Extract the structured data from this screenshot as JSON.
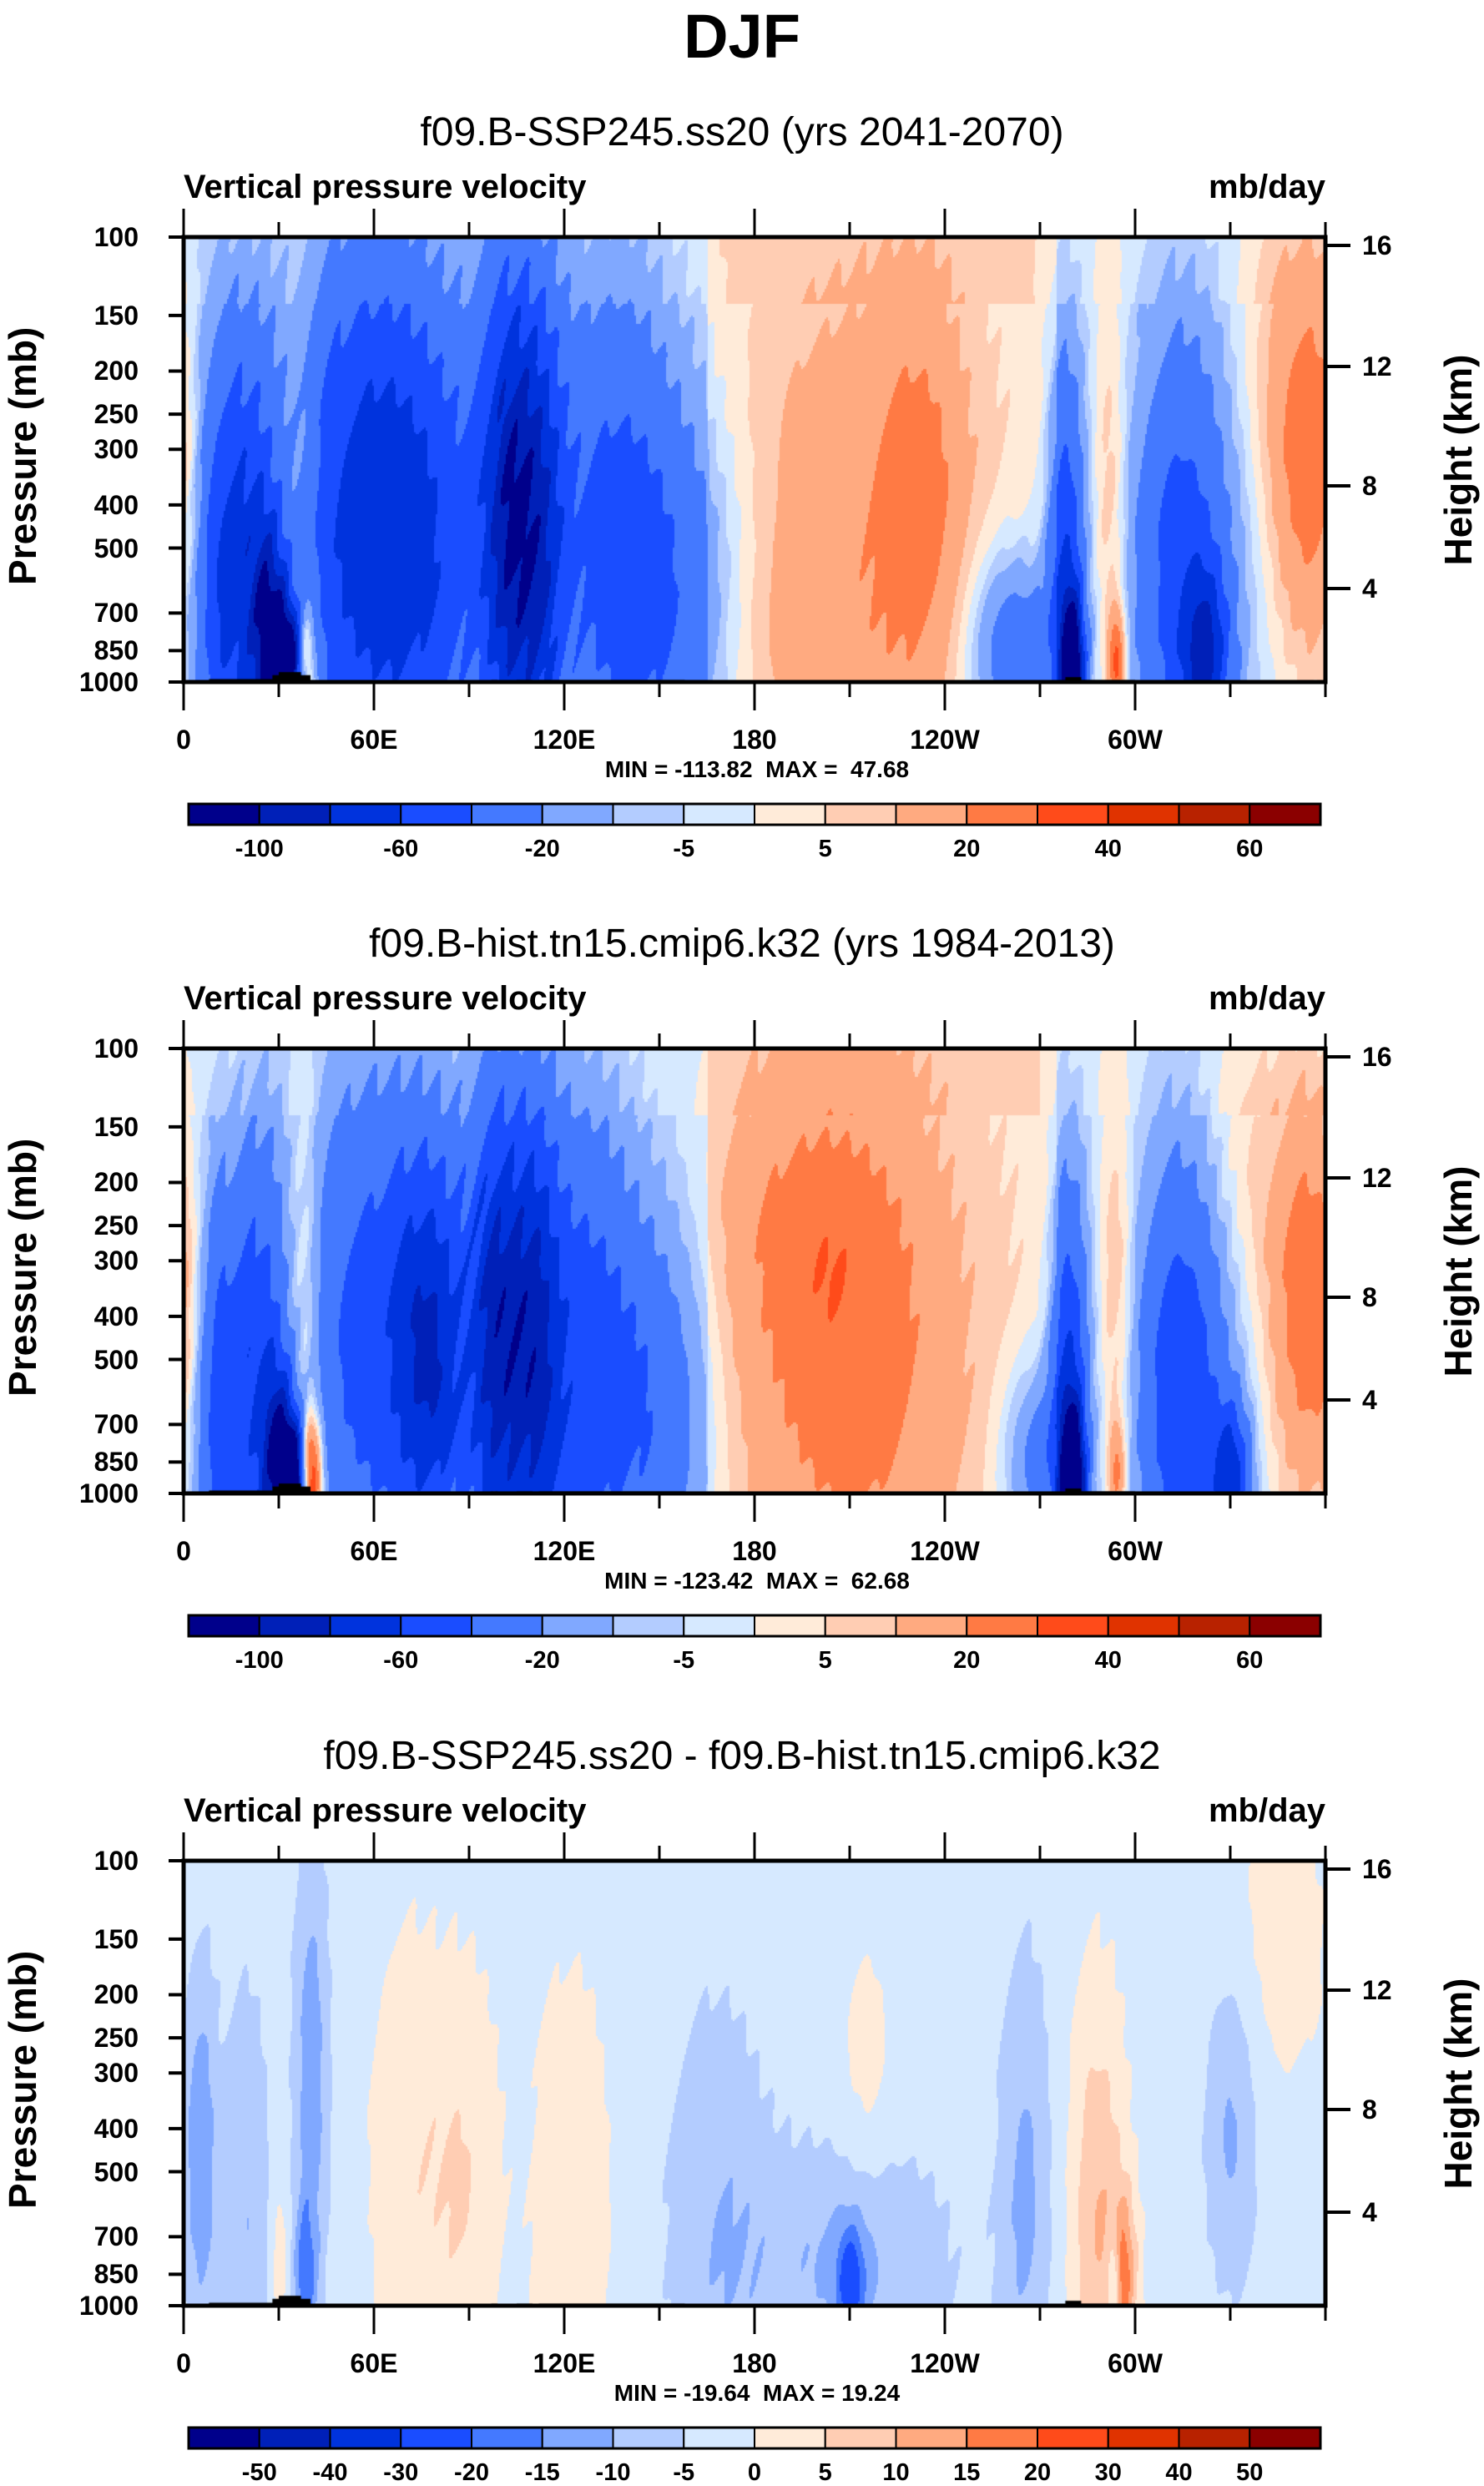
{
  "figure": {
    "title": "DJF"
  },
  "chart_data": [
    {
      "type": "heatmap",
      "subtype": "filled-contour pressure-longitude cross section",
      "title": "f09.B-SSP245.ss20 (yrs 2041-2070)",
      "left_string": "Vertical pressure velocity",
      "right_string": "mb/day",
      "xlabel": "",
      "ylabel": "Pressure (mb)",
      "ylabel_right": "Height (km)",
      "x_ticks": [
        "0",
        "60E",
        "120E",
        "180",
        "120W",
        "60W"
      ],
      "x_tick_values": [
        0,
        60,
        120,
        180,
        240,
        300
      ],
      "xlim": [
        0,
        360
      ],
      "y_ticks": [
        "100",
        "150",
        "200",
        "250",
        "300",
        "400",
        "500",
        "700",
        "850",
        "1000"
      ],
      "ylim": [
        1000,
        100
      ],
      "y_scale": "log",
      "y_right_ticks": [
        "16",
        "12",
        "8",
        "4"
      ],
      "min_max": "MIN = -113.82  MAX =  47.68",
      "min": -113.82,
      "max": 47.68,
      "colorbar": {
        "levels": [
          -100,
          -80,
          -60,
          -40,
          -20,
          -10,
          -5,
          0,
          5,
          10,
          20,
          30,
          40,
          50,
          60
        ],
        "labels": [
          "-100",
          "-60",
          "-20",
          "-5",
          "5",
          "20",
          "40",
          "60"
        ],
        "label_every": 2,
        "colors": [
          "#00008b",
          "#0020b8",
          "#0033dd",
          "#1a4dff",
          "#4479ff",
          "#80a8ff",
          "#b3ccff",
          "#d6e9ff",
          "#ffebd9",
          "#ffcdb3",
          "#ffaa80",
          "#ff7a44",
          "#ff4b1a",
          "#e03300",
          "#b82200",
          "#8b0000"
        ]
      },
      "features": [
        {
          "lon": 0,
          "p": 330,
          "value": 15,
          "wlon": 5,
          "wp": 0.55
        },
        {
          "lon": 12,
          "p": 600,
          "value": -55,
          "wlon": 6,
          "wp": 0.9
        },
        {
          "lon": 22,
          "p": 500,
          "value": -35,
          "wlon": 5,
          "wp": 0.8
        },
        {
          "lon": 27,
          "p": 800,
          "value": -80,
          "wlon": 4,
          "wp": 0.4
        },
        {
          "lon": 33,
          "p": 920,
          "value": -110,
          "wlon": 3,
          "wp": 0.22
        },
        {
          "lon": 37,
          "p": 380,
          "value": 14,
          "wlon": 4,
          "wp": 0.9
        },
        {
          "lon": 38,
          "p": 920,
          "value": 45,
          "wlon": 2.5,
          "wp": 0.22
        },
        {
          "lon": 55,
          "p": 420,
          "value": -48,
          "wlon": 18,
          "wp": 1.0
        },
        {
          "lon": 75,
          "p": 500,
          "value": -40,
          "wlon": 18,
          "wp": 0.95
        },
        {
          "lon": 102,
          "p": 420,
          "value": -70,
          "wlon": 6,
          "wp": 0.9
        },
        {
          "lon": 112,
          "p": 450,
          "value": -58,
          "wlon": 6,
          "wp": 0.9
        },
        {
          "lon": 135,
          "p": 480,
          "value": -40,
          "wlon": 14,
          "wp": 0.95
        },
        {
          "lon": 155,
          "p": 650,
          "value": -25,
          "wlon": 14,
          "wp": 0.7
        },
        {
          "lon": 210,
          "p": 380,
          "value": 12,
          "wlon": 25,
          "wp": 0.85
        },
        {
          "lon": 232,
          "p": 380,
          "value": 16,
          "wlon": 10,
          "wp": 0.7
        },
        {
          "lon": 200,
          "p": 850,
          "value": 6,
          "wlon": 25,
          "wp": 0.4
        },
        {
          "lon": 278,
          "p": 620,
          "value": -55,
          "wlon": 4,
          "wp": 0.8
        },
        {
          "lon": 280,
          "p": 920,
          "value": -100,
          "wlon": 2.5,
          "wp": 0.25
        },
        {
          "lon": 262,
          "p": 850,
          "value": -35,
          "wlon": 10,
          "wp": 0.35
        },
        {
          "lon": 292,
          "p": 400,
          "value": 14,
          "wlon": 4,
          "wp": 0.8
        },
        {
          "lon": 294,
          "p": 900,
          "value": 35,
          "wlon": 2,
          "wp": 0.2
        },
        {
          "lon": 315,
          "p": 580,
          "value": -48,
          "wlon": 11,
          "wp": 0.9
        },
        {
          "lon": 322,
          "p": 850,
          "value": -55,
          "wlon": 5,
          "wp": 0.3
        },
        {
          "lon": 355,
          "p": 330,
          "value": 26,
          "wlon": 9,
          "wp": 0.75
        },
        {
          "lon": 345,
          "p": 200,
          "value": 8,
          "wlon": 14,
          "wp": 0.6
        }
      ]
    },
    {
      "type": "heatmap",
      "subtype": "filled-contour pressure-longitude cross section",
      "title": "f09.B-hist.tn15.cmip6.k32 (yrs 1984-2013)",
      "left_string": "Vertical pressure velocity",
      "right_string": "mb/day",
      "xlabel": "",
      "ylabel": "Pressure (mb)",
      "ylabel_right": "Height (km)",
      "x_ticks": [
        "0",
        "60E",
        "120E",
        "180",
        "120W",
        "60W"
      ],
      "x_tick_values": [
        0,
        60,
        120,
        180,
        240,
        300
      ],
      "xlim": [
        0,
        360
      ],
      "y_ticks": [
        "100",
        "150",
        "200",
        "250",
        "300",
        "400",
        "500",
        "700",
        "850",
        "1000"
      ],
      "ylim": [
        1000,
        100
      ],
      "y_scale": "log",
      "y_right_ticks": [
        "16",
        "12",
        "8",
        "4"
      ],
      "min_max": "MIN = -123.42  MAX =  62.68",
      "min": -123.42,
      "max": 62.68,
      "colorbar": {
        "levels": [
          -100,
          -80,
          -60,
          -40,
          -20,
          -10,
          -5,
          0,
          5,
          10,
          20,
          30,
          40,
          50,
          60
        ],
        "labels": [
          "-100",
          "-60",
          "-20",
          "-5",
          "5",
          "20",
          "40",
          "60"
        ],
        "label_every": 2,
        "colors": [
          "#00008b",
          "#0020b8",
          "#0033dd",
          "#1a4dff",
          "#4479ff",
          "#80a8ff",
          "#b3ccff",
          "#d6e9ff",
          "#ffebd9",
          "#ffcdb3",
          "#ffaa80",
          "#ff7a44",
          "#ff4b1a",
          "#e03300",
          "#b82200",
          "#8b0000"
        ]
      },
      "features": [
        {
          "lon": 0,
          "p": 380,
          "value": 20,
          "wlon": 5,
          "wp": 0.6
        },
        {
          "lon": 12,
          "p": 650,
          "value": -50,
          "wlon": 6,
          "wp": 0.8
        },
        {
          "lon": 24,
          "p": 500,
          "value": -38,
          "wlon": 5,
          "wp": 0.8
        },
        {
          "lon": 30,
          "p": 850,
          "value": -85,
          "wlon": 4,
          "wp": 0.35
        },
        {
          "lon": 34,
          "p": 930,
          "value": -115,
          "wlon": 2.5,
          "wp": 0.2
        },
        {
          "lon": 38,
          "p": 420,
          "value": 20,
          "wlon": 4,
          "wp": 0.9
        },
        {
          "lon": 40,
          "p": 920,
          "value": 55,
          "wlon": 2.5,
          "wp": 0.22
        },
        {
          "lon": 60,
          "p": 450,
          "value": -45,
          "wlon": 18,
          "wp": 1.0
        },
        {
          "lon": 78,
          "p": 480,
          "value": -55,
          "wlon": 8,
          "wp": 0.7
        },
        {
          "lon": 98,
          "p": 450,
          "value": -72,
          "wlon": 6,
          "wp": 0.9
        },
        {
          "lon": 110,
          "p": 450,
          "value": -62,
          "wlon": 6,
          "wp": 0.9
        },
        {
          "lon": 125,
          "p": 500,
          "value": -45,
          "wlon": 12,
          "wp": 0.9
        },
        {
          "lon": 148,
          "p": 650,
          "value": -30,
          "wlon": 12,
          "wp": 0.7
        },
        {
          "lon": 210,
          "p": 500,
          "value": 22,
          "wlon": 25,
          "wp": 1.0
        },
        {
          "lon": 195,
          "p": 250,
          "value": 10,
          "wlon": 20,
          "wp": 0.5
        },
        {
          "lon": 270,
          "p": 850,
          "value": -30,
          "wlon": 8,
          "wp": 0.35
        },
        {
          "lon": 279,
          "p": 650,
          "value": -60,
          "wlon": 4,
          "wp": 0.8
        },
        {
          "lon": 280,
          "p": 930,
          "value": -110,
          "wlon": 2.5,
          "wp": 0.25
        },
        {
          "lon": 294,
          "p": 350,
          "value": 15,
          "wlon": 4,
          "wp": 0.7
        },
        {
          "lon": 294,
          "p": 900,
          "value": 25,
          "wlon": 2,
          "wp": 0.2
        },
        {
          "lon": 315,
          "p": 580,
          "value": -55,
          "wlon": 10,
          "wp": 0.9
        },
        {
          "lon": 330,
          "p": 900,
          "value": -60,
          "wlon": 4,
          "wp": 0.25
        },
        {
          "lon": 355,
          "p": 380,
          "value": 30,
          "wlon": 9,
          "wp": 0.75
        },
        {
          "lon": 330,
          "p": 200,
          "value": 10,
          "wlon": 14,
          "wp": 0.6
        }
      ]
    },
    {
      "type": "heatmap",
      "subtype": "filled-contour pressure-longitude cross section (difference)",
      "title": "f09.B-SSP245.ss20 - f09.B-hist.tn15.cmip6.k32",
      "left_string": "Vertical pressure velocity",
      "right_string": "mb/day",
      "xlabel": "",
      "ylabel": "Pressure (mb)",
      "ylabel_right": "Height (km)",
      "x_ticks": [
        "0",
        "60E",
        "120E",
        "180",
        "120W",
        "60W"
      ],
      "x_tick_values": [
        0,
        60,
        120,
        180,
        240,
        300
      ],
      "xlim": [
        0,
        360
      ],
      "y_ticks": [
        "100",
        "150",
        "200",
        "250",
        "300",
        "400",
        "500",
        "700",
        "850",
        "1000"
      ],
      "ylim": [
        1000,
        100
      ],
      "y_scale": "log",
      "y_right_ticks": [
        "16",
        "12",
        "8",
        "4"
      ],
      "min_max": "MIN = -19.64  MAX = 19.24",
      "min": -19.64,
      "max": 19.24,
      "colorbar": {
        "levels": [
          -50,
          -40,
          -30,
          -20,
          -15,
          -10,
          -5,
          0,
          5,
          10,
          15,
          20,
          30,
          40,
          50
        ],
        "labels": [
          "-50",
          "-40",
          "-30",
          "-20",
          "-15",
          "-10",
          "-5",
          "0",
          "5",
          "10",
          "15",
          "20",
          "30",
          "40",
          "50"
        ],
        "label_every": 1,
        "colors": [
          "#00008b",
          "#0020b8",
          "#0033dd",
          "#1a4dff",
          "#4479ff",
          "#80a8ff",
          "#b3ccff",
          "#d6e9ff",
          "#ffebd9",
          "#ffcdb3",
          "#ffaa80",
          "#ff7a44",
          "#ff4b1a",
          "#e03300",
          "#b82200",
          "#8b0000"
        ]
      },
      "features": [
        {
          "lon": 5,
          "p": 450,
          "value": -12,
          "wlon": 4,
          "wp": 0.7
        },
        {
          "lon": 20,
          "p": 650,
          "value": -8,
          "wlon": 5,
          "wp": 0.9
        },
        {
          "lon": 30,
          "p": 800,
          "value": 6,
          "wlon": 2,
          "wp": 0.3
        },
        {
          "lon": 40,
          "p": 300,
          "value": -11,
          "wlon": 4,
          "wp": 0.9
        },
        {
          "lon": 38,
          "p": 900,
          "value": -13,
          "wlon": 2.5,
          "wp": 0.3
        },
        {
          "lon": 70,
          "p": 450,
          "value": 6,
          "wlon": 8,
          "wp": 0.8
        },
        {
          "lon": 88,
          "p": 550,
          "value": 7,
          "wlon": 8,
          "wp": 0.8
        },
        {
          "lon": 122,
          "p": 600,
          "value": 7,
          "wlon": 8,
          "wp": 0.8
        },
        {
          "lon": 168,
          "p": 650,
          "value": -7,
          "wlon": 12,
          "wp": 0.9
        },
        {
          "lon": 210,
          "p": 800,
          "value": -9,
          "wlon": 22,
          "wp": 0.45
        },
        {
          "lon": 210,
          "p": 880,
          "value": -16,
          "wlon": 3,
          "wp": 0.2
        },
        {
          "lon": 265,
          "p": 550,
          "value": -9,
          "wlon": 6,
          "wp": 0.9
        },
        {
          "lon": 215,
          "p": 300,
          "value": 4,
          "wlon": 6,
          "wp": 0.5
        },
        {
          "lon": 288,
          "p": 650,
          "value": 12,
          "wlon": 6,
          "wp": 0.8
        },
        {
          "lon": 293,
          "p": 880,
          "value": -15,
          "wlon": 1.5,
          "wp": 0.2
        },
        {
          "lon": 296,
          "p": 850,
          "value": 17,
          "wlon": 3,
          "wp": 0.3
        },
        {
          "lon": 330,
          "p": 400,
          "value": -9,
          "wlon": 6,
          "wp": 0.6
        },
        {
          "lon": 345,
          "p": 150,
          "value": 4,
          "wlon": 12,
          "wp": 0.6
        }
      ]
    }
  ]
}
